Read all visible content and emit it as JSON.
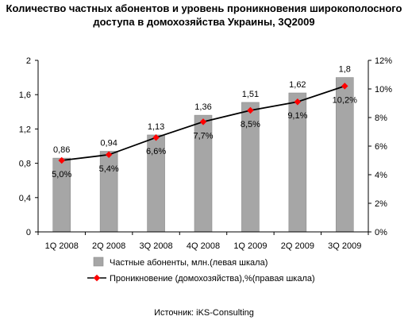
{
  "chart_data": {
    "type": "bar",
    "title_line1": "Количество частных абонентов и уровень проникновения широкополосного",
    "title_line2": "доступа в домохозяйства Украины, 3Q2009",
    "categories": [
      "1Q 2008",
      "2Q 2008",
      "3Q 2008",
      "4Q 2008",
      "1Q 2009",
      "2Q 2009",
      "3Q 2009"
    ],
    "series": [
      {
        "name": "Частные абоненты, млн.(левая шкала)",
        "type": "bar",
        "axis": "left",
        "values": [
          0.86,
          0.94,
          1.13,
          1.36,
          1.51,
          1.62,
          1.8
        ],
        "labels": [
          "0,86",
          "0,94",
          "1,13",
          "1,36",
          "1,51",
          "1,62",
          "1,8"
        ],
        "color": "#a6a6a6"
      },
      {
        "name": "Проникновение (домохозяйства),%(правая шкала)",
        "type": "line",
        "axis": "right",
        "values": [
          5.0,
          5.4,
          6.6,
          7.7,
          8.5,
          9.1,
          10.2
        ],
        "labels": [
          "5,0%",
          "5,4%",
          "6,6%",
          "7,7%",
          "8,5%",
          "9,1%",
          "10,2%"
        ],
        "line_color": "#000000",
        "marker_color": "#ff0000"
      }
    ],
    "y_left": {
      "ylim": [
        0,
        2
      ],
      "ticks": [
        0,
        0.4,
        0.8,
        1.2,
        1.6,
        2
      ],
      "tick_labels": [
        "0",
        "0,4",
        "0,8",
        "1,2",
        "1,6",
        "2"
      ]
    },
    "y_right": {
      "ylim": [
        0,
        12
      ],
      "ticks": [
        0,
        2,
        4,
        6,
        8,
        10,
        12
      ],
      "tick_labels": [
        "0%",
        "2%",
        "4%",
        "6%",
        "8%",
        "10%",
        "12%"
      ]
    },
    "grid": false,
    "legend_position": "bottom"
  },
  "source": "Источник: iKS-Consulting"
}
